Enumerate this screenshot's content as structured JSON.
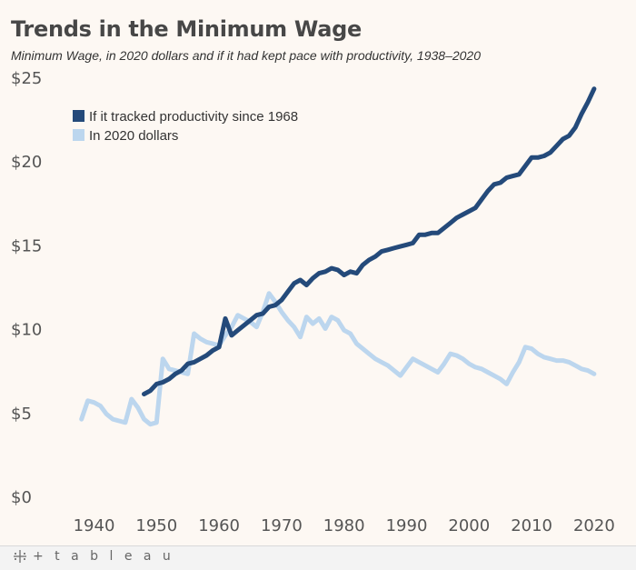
{
  "header": {
    "title": "Trends in the Minimum Wage",
    "subtitle": "Minimum Wage, in 2020 dollars and if it had kept pace with productivity, 1938–2020"
  },
  "footer": {
    "brand": "+ t a b l e a u"
  },
  "colors": {
    "productivity": "#244a7a",
    "real": "#bcd6ee",
    "background": "#fdf8f3"
  },
  "chart_data": {
    "type": "line",
    "title": "Trends in the Minimum Wage",
    "subtitle": "Minimum Wage, in 2020 dollars and if it had kept pace with productivity, 1938–2020",
    "xlabel": "",
    "ylabel": "",
    "xlim": [
      1936,
      2022
    ],
    "ylim": [
      0,
      25
    ],
    "x_ticks": [
      "1940",
      "1950",
      "1960",
      "1970",
      "1980",
      "1990",
      "2000",
      "2010",
      "2020"
    ],
    "y_ticks": [
      "$0",
      "$5",
      "$10",
      "$15",
      "$20",
      "$25"
    ],
    "grid": false,
    "legend_position": "top-left",
    "series": [
      {
        "name": "If it tracked productivity since 1968",
        "color": "#244a7a",
        "points": [
          [
            1948,
            6.1
          ],
          [
            1949,
            6.3
          ],
          [
            1950,
            6.7
          ],
          [
            1951,
            6.8
          ],
          [
            1952,
            7.0
          ],
          [
            1953,
            7.3
          ],
          [
            1954,
            7.5
          ],
          [
            1955,
            7.9
          ],
          [
            1956,
            8.0
          ],
          [
            1957,
            8.2
          ],
          [
            1958,
            8.4
          ],
          [
            1959,
            8.7
          ],
          [
            1960,
            8.9
          ],
          [
            1961,
            10.6
          ],
          [
            1962,
            9.6
          ],
          [
            1963,
            9.9
          ],
          [
            1964,
            10.2
          ],
          [
            1965,
            10.5
          ],
          [
            1966,
            10.8
          ],
          [
            1967,
            10.9
          ],
          [
            1968,
            11.3
          ],
          [
            1969,
            11.4
          ],
          [
            1970,
            11.7
          ],
          [
            1971,
            12.2
          ],
          [
            1972,
            12.7
          ],
          [
            1973,
            12.9
          ],
          [
            1974,
            12.6
          ],
          [
            1975,
            13.0
          ],
          [
            1976,
            13.3
          ],
          [
            1977,
            13.4
          ],
          [
            1978,
            13.6
          ],
          [
            1979,
            13.5
          ],
          [
            1980,
            13.2
          ],
          [
            1981,
            13.4
          ],
          [
            1982,
            13.3
          ],
          [
            1983,
            13.8
          ],
          [
            1984,
            14.1
          ],
          [
            1985,
            14.3
          ],
          [
            1986,
            14.6
          ],
          [
            1987,
            14.7
          ],
          [
            1988,
            14.8
          ],
          [
            1989,
            14.9
          ],
          [
            1990,
            15.0
          ],
          [
            1991,
            15.1
          ],
          [
            1992,
            15.6
          ],
          [
            1993,
            15.6
          ],
          [
            1994,
            15.7
          ],
          [
            1995,
            15.7
          ],
          [
            1996,
            16.0
          ],
          [
            1997,
            16.3
          ],
          [
            1998,
            16.6
          ],
          [
            1999,
            16.8
          ],
          [
            2000,
            17.0
          ],
          [
            2001,
            17.2
          ],
          [
            2002,
            17.7
          ],
          [
            2003,
            18.2
          ],
          [
            2004,
            18.6
          ],
          [
            2005,
            18.7
          ],
          [
            2006,
            19.0
          ],
          [
            2007,
            19.1
          ],
          [
            2008,
            19.2
          ],
          [
            2009,
            19.7
          ],
          [
            2010,
            20.2
          ],
          [
            2011,
            20.2
          ],
          [
            2012,
            20.3
          ],
          [
            2013,
            20.5
          ],
          [
            2014,
            20.9
          ],
          [
            2015,
            21.3
          ],
          [
            2016,
            21.5
          ],
          [
            2017,
            22.0
          ],
          [
            2018,
            22.8
          ],
          [
            2019,
            23.5
          ],
          [
            2020,
            24.3
          ]
        ]
      },
      {
        "name": "In 2020 dollars",
        "color": "#bcd6ee",
        "points": [
          [
            1938,
            4.6
          ],
          [
            1939,
            5.7
          ],
          [
            1940,
            5.6
          ],
          [
            1941,
            5.4
          ],
          [
            1942,
            4.9
          ],
          [
            1943,
            4.6
          ],
          [
            1944,
            4.5
          ],
          [
            1945,
            4.4
          ],
          [
            1946,
            5.8
          ],
          [
            1947,
            5.3
          ],
          [
            1948,
            4.6
          ],
          [
            1949,
            4.3
          ],
          [
            1950,
            4.4
          ],
          [
            1951,
            8.2
          ],
          [
            1952,
            7.6
          ],
          [
            1953,
            7.5
          ],
          [
            1954,
            7.4
          ],
          [
            1955,
            7.3
          ],
          [
            1956,
            9.7
          ],
          [
            1957,
            9.4
          ],
          [
            1958,
            9.2
          ],
          [
            1959,
            9.1
          ],
          [
            1960,
            9.0
          ],
          [
            1961,
            9.6
          ],
          [
            1962,
            10.1
          ],
          [
            1963,
            10.8
          ],
          [
            1964,
            10.6
          ],
          [
            1965,
            10.4
          ],
          [
            1966,
            10.1
          ],
          [
            1967,
            11.0
          ],
          [
            1968,
            12.1
          ],
          [
            1969,
            11.6
          ],
          [
            1970,
            11.0
          ],
          [
            1971,
            10.5
          ],
          [
            1972,
            10.1
          ],
          [
            1973,
            9.5
          ],
          [
            1974,
            10.7
          ],
          [
            1975,
            10.3
          ],
          [
            1976,
            10.6
          ],
          [
            1977,
            10.0
          ],
          [
            1978,
            10.7
          ],
          [
            1979,
            10.5
          ],
          [
            1980,
            9.9
          ],
          [
            1981,
            9.7
          ],
          [
            1982,
            9.1
          ],
          [
            1983,
            8.8
          ],
          [
            1984,
            8.5
          ],
          [
            1985,
            8.2
          ],
          [
            1986,
            8.0
          ],
          [
            1987,
            7.8
          ],
          [
            1988,
            7.5
          ],
          [
            1989,
            7.2
          ],
          [
            1990,
            7.7
          ],
          [
            1991,
            8.2
          ],
          [
            1992,
            8.0
          ],
          [
            1993,
            7.8
          ],
          [
            1994,
            7.6
          ],
          [
            1995,
            7.4
          ],
          [
            1996,
            7.9
          ],
          [
            1997,
            8.5
          ],
          [
            1998,
            8.4
          ],
          [
            1999,
            8.2
          ],
          [
            2000,
            7.9
          ],
          [
            2001,
            7.7
          ],
          [
            2002,
            7.6
          ],
          [
            2003,
            7.4
          ],
          [
            2004,
            7.2
          ],
          [
            2005,
            7.0
          ],
          [
            2006,
            6.7
          ],
          [
            2007,
            7.4
          ],
          [
            2008,
            8.0
          ],
          [
            2009,
            8.9
          ],
          [
            2010,
            8.8
          ],
          [
            2011,
            8.5
          ],
          [
            2012,
            8.3
          ],
          [
            2013,
            8.2
          ],
          [
            2014,
            8.1
          ],
          [
            2015,
            8.1
          ],
          [
            2016,
            8.0
          ],
          [
            2017,
            7.8
          ],
          [
            2018,
            7.6
          ],
          [
            2019,
            7.5
          ],
          [
            2020,
            7.3
          ]
        ]
      }
    ]
  }
}
